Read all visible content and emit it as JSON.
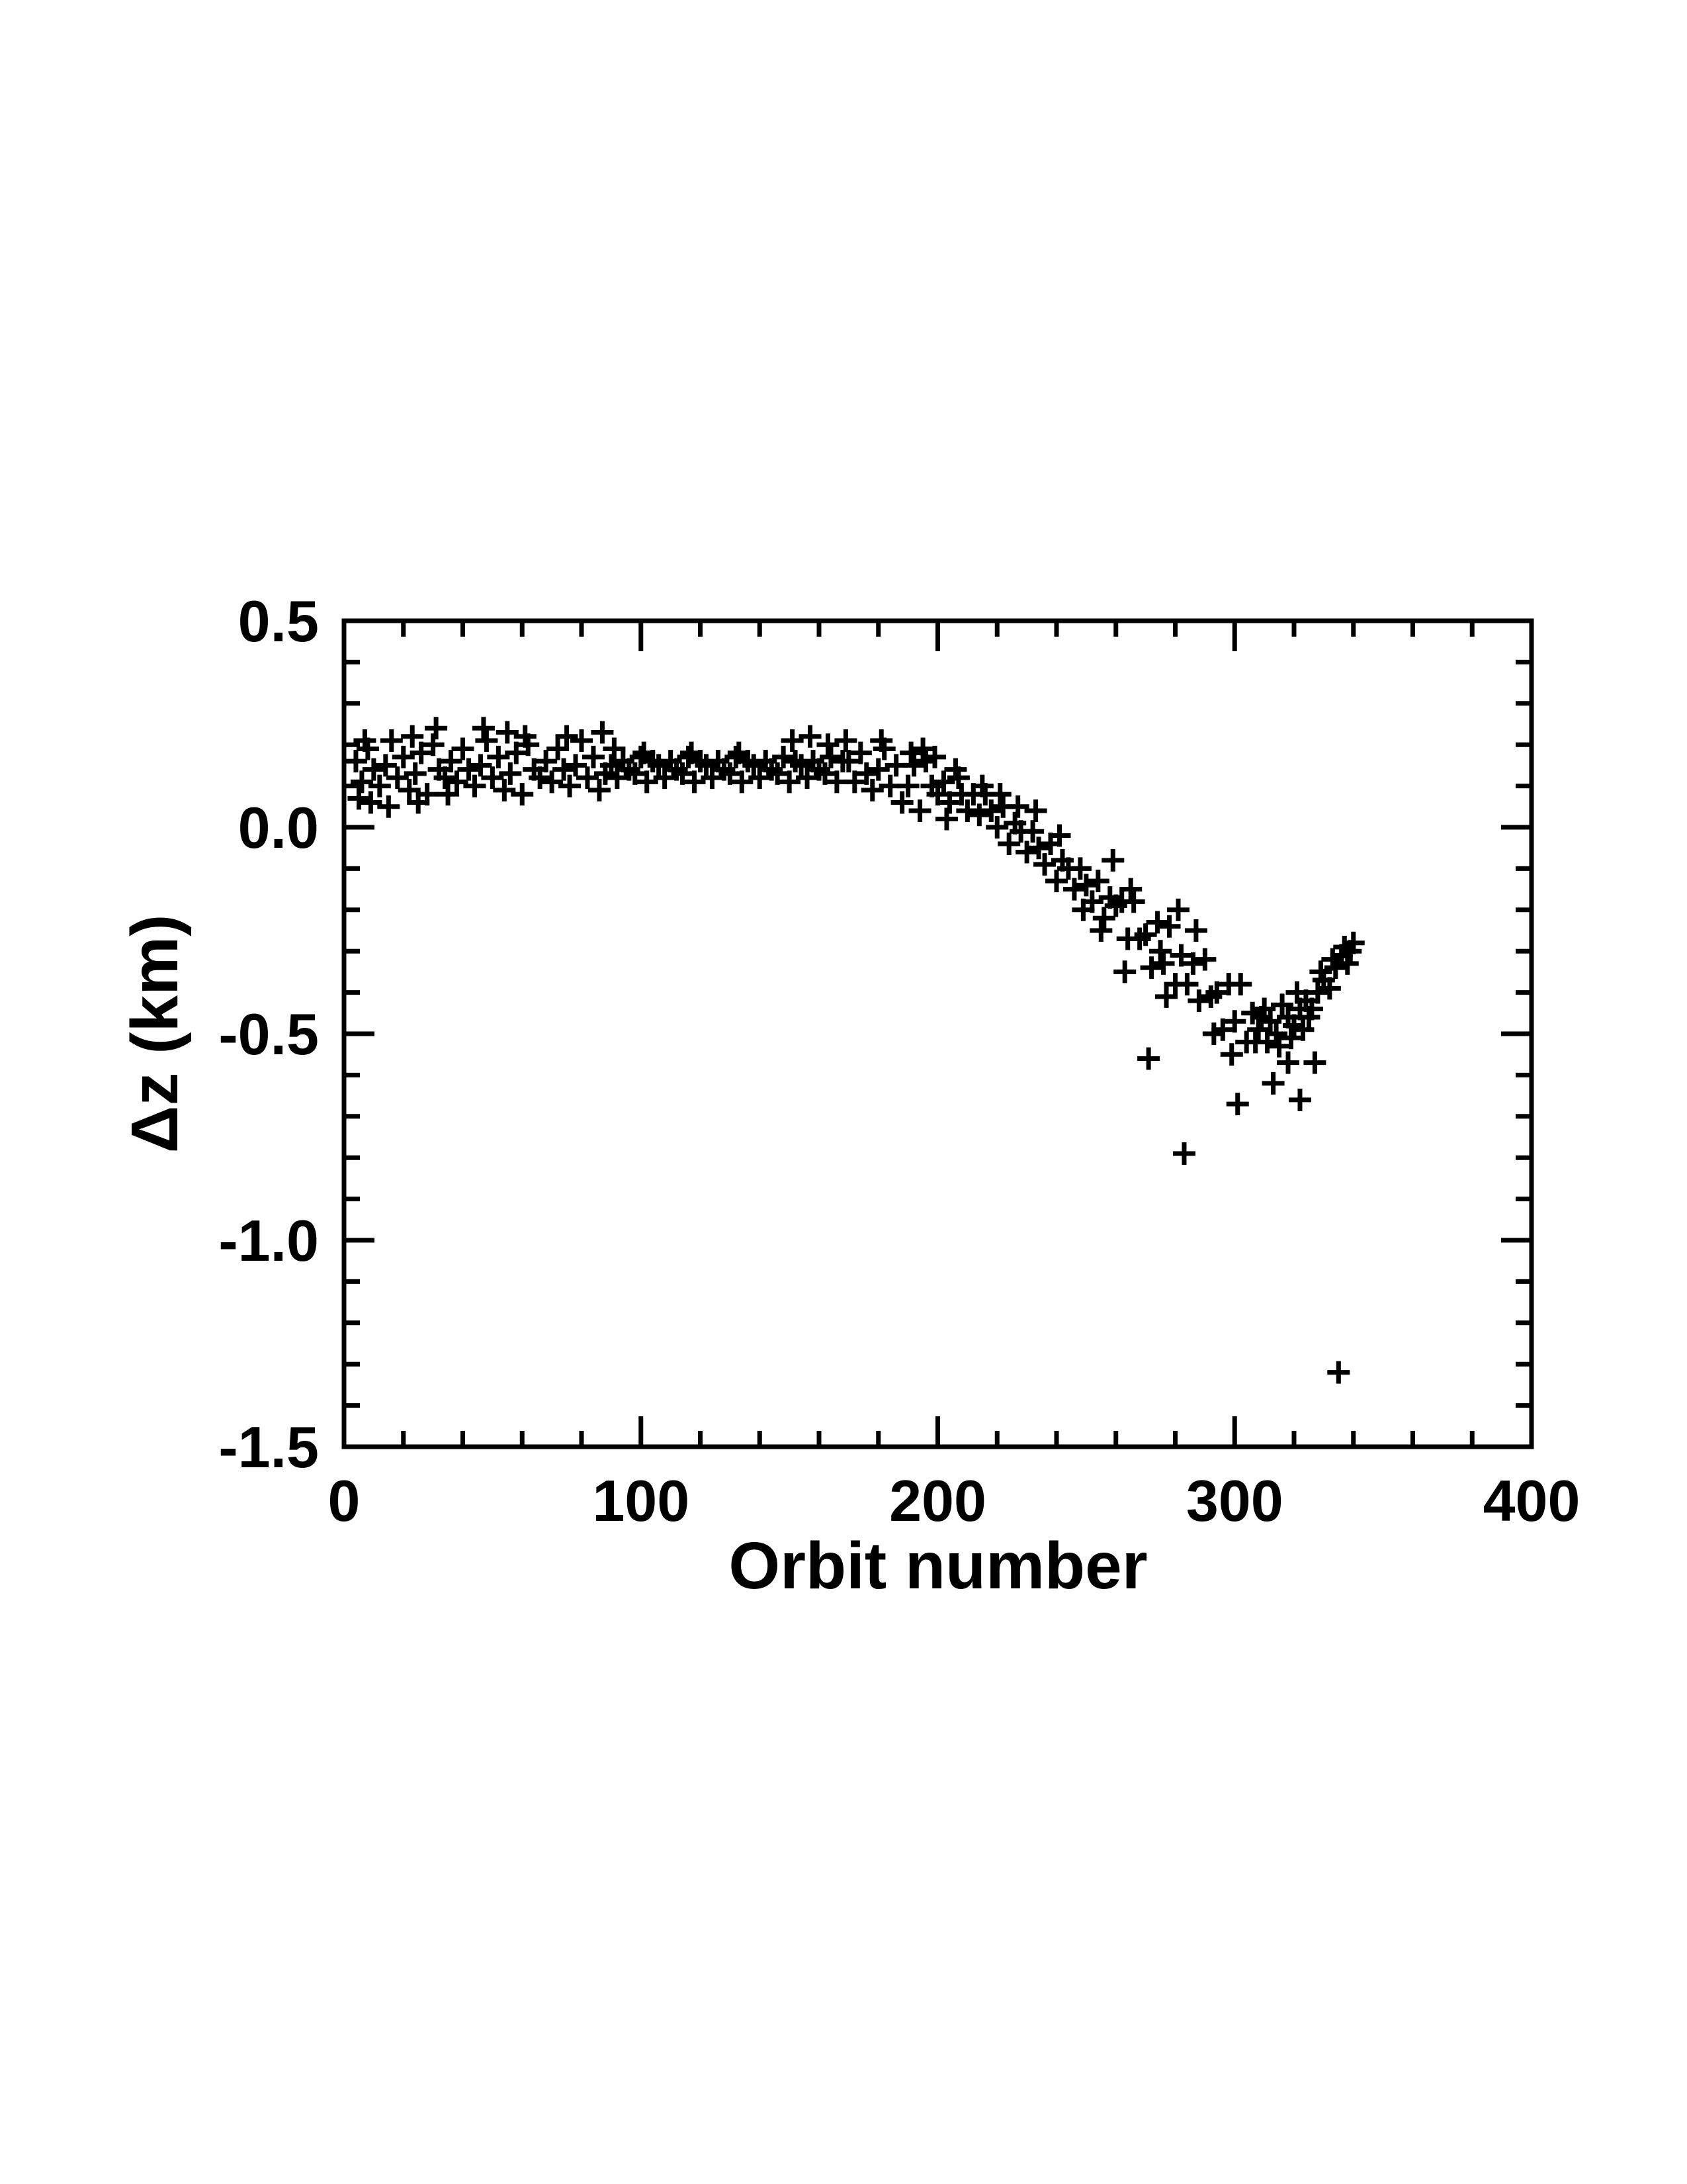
{
  "figure": {
    "background": "#ffffff",
    "ink": "#000000"
  },
  "chart_data": {
    "type": "scatter",
    "title": "",
    "xlabel": "Orbit number",
    "ylabel": "Δz (km)",
    "marker": "plus",
    "grid": false,
    "legend": "none",
    "xlim": [
      0,
      400
    ],
    "ylim": [
      -1.5,
      0.5
    ],
    "x_major_ticks": [
      0,
      100,
      200,
      300,
      400
    ],
    "x_tick_labels": [
      "0",
      "100",
      "200",
      "300",
      "400"
    ],
    "x_minor_step": 20,
    "y_major_ticks": [
      0.5,
      0.0,
      -0.5,
      -1.0,
      -1.5
    ],
    "y_tick_labels": [
      "0.5",
      "0.0",
      "-0.5",
      "-1.0",
      "-1.5"
    ],
    "y_minor_step": 0.1,
    "points": [
      [
        4,
        0.16
      ],
      [
        6,
        0.11
      ],
      [
        8,
        0.19
      ],
      [
        10,
        0.14
      ],
      [
        12,
        0.1
      ],
      [
        14,
        0.15
      ],
      [
        16,
        0.21
      ],
      [
        18,
        0.12
      ],
      [
        20,
        0.17
      ],
      [
        22,
        0.09
      ],
      [
        24,
        0.13
      ],
      [
        26,
        0.18
      ],
      [
        28,
        0.08
      ],
      [
        30,
        0.2
      ],
      [
        32,
        0.14
      ],
      [
        34,
        0.12
      ],
      [
        36,
        0.16
      ],
      [
        38,
        0.11
      ],
      [
        40,
        0.19
      ],
      [
        42,
        0.14
      ],
      [
        44,
        0.1
      ],
      [
        46,
        0.15
      ],
      [
        48,
        0.21
      ],
      [
        50,
        0.12
      ],
      [
        52,
        0.17
      ],
      [
        54,
        0.09
      ],
      [
        56,
        0.13
      ],
      [
        58,
        0.18
      ],
      [
        60,
        0.08
      ],
      [
        62,
        0.2
      ],
      [
        64,
        0.14
      ],
      [
        66,
        0.12
      ],
      [
        68,
        0.16
      ],
      [
        70,
        0.11
      ],
      [
        72,
        0.19
      ],
      [
        74,
        0.14
      ],
      [
        76,
        0.1
      ],
      [
        78,
        0.15
      ],
      [
        80,
        0.21
      ],
      [
        82,
        0.12
      ],
      [
        84,
        0.17
      ],
      [
        86,
        0.09
      ],
      [
        88,
        0.13
      ],
      [
        5,
        0.07
      ],
      [
        9,
        0.06
      ],
      [
        15,
        0.05
      ],
      [
        25,
        0.06
      ],
      [
        35,
        0.08
      ],
      [
        7,
        0.21
      ],
      [
        23,
        0.22
      ],
      [
        31,
        0.24
      ],
      [
        47,
        0.24
      ],
      [
        55,
        0.23
      ],
      [
        61,
        0.22
      ],
      [
        75,
        0.22
      ],
      [
        87,
        0.23
      ],
      [
        90,
        0.15
      ],
      [
        92,
        0.12
      ],
      [
        94,
        0.16
      ],
      [
        96,
        0.14
      ],
      [
        98,
        0.13
      ],
      [
        100,
        0.17
      ],
      [
        102,
        0.11
      ],
      [
        104,
        0.16
      ],
      [
        106,
        0.15
      ],
      [
        108,
        0.12
      ],
      [
        110,
        0.16
      ],
      [
        112,
        0.14
      ],
      [
        114,
        0.13
      ],
      [
        116,
        0.17
      ],
      [
        118,
        0.11
      ],
      [
        120,
        0.16
      ],
      [
        122,
        0.15
      ],
      [
        124,
        0.12
      ],
      [
        126,
        0.16
      ],
      [
        128,
        0.14
      ],
      [
        130,
        0.13
      ],
      [
        132,
        0.17
      ],
      [
        134,
        0.11
      ],
      [
        136,
        0.16
      ],
      [
        138,
        0.15
      ],
      [
        140,
        0.12
      ],
      [
        142,
        0.16
      ],
      [
        144,
        0.14
      ],
      [
        146,
        0.13
      ],
      [
        148,
        0.17
      ],
      [
        150,
        0.11
      ],
      [
        152,
        0.16
      ],
      [
        154,
        0.15
      ],
      [
        156,
        0.12
      ],
      [
        158,
        0.16
      ],
      [
        160,
        0.14
      ],
      [
        162,
        0.13
      ],
      [
        164,
        0.17
      ],
      [
        166,
        0.11
      ],
      [
        168,
        0.16
      ],
      [
        151,
        0.21
      ],
      [
        157,
        0.22
      ],
      [
        163,
        0.2
      ],
      [
        169,
        0.21
      ],
      [
        91,
        0.19
      ],
      [
        101,
        0.18
      ],
      [
        117,
        0.18
      ],
      [
        133,
        0.18
      ],
      [
        170,
        0.16
      ],
      [
        172,
        0.11
      ],
      [
        174,
        0.18
      ],
      [
        176,
        0.13
      ],
      [
        178,
        0.09
      ],
      [
        180,
        0.14
      ],
      [
        182,
        0.19
      ],
      [
        184,
        0.1
      ],
      [
        186,
        0.15
      ],
      [
        188,
        0.06
      ],
      [
        190,
        0.1
      ],
      [
        192,
        0.15
      ],
      [
        194,
        0.04
      ],
      [
        196,
        0.16
      ],
      [
        198,
        0.1
      ],
      [
        200,
        0.08
      ],
      [
        202,
        0.11
      ],
      [
        204,
        0.06
      ],
      [
        206,
        0.14
      ],
      [
        208,
        0.08
      ],
      [
        210,
        0.04
      ],
      [
        181,
        0.21
      ],
      [
        191,
        0.18
      ],
      [
        199,
        0.17
      ],
      [
        203,
        0.02
      ],
      [
        207,
        0.12
      ],
      [
        195,
        0.19
      ],
      [
        212,
        0.08
      ],
      [
        214,
        0.03
      ],
      [
        216,
        0.08
      ],
      [
        218,
        0.04
      ],
      [
        220,
        0.0
      ],
      [
        222,
        0.05
      ],
      [
        224,
        -0.04
      ],
      [
        226,
        0.01
      ],
      [
        228,
        -0.01
      ],
      [
        230,
        -0.06
      ],
      [
        232,
        -0.01
      ],
      [
        234,
        -0.05
      ],
      [
        236,
        -0.09
      ],
      [
        238,
        -0.04
      ],
      [
        240,
        -0.13
      ],
      [
        242,
        -0.08
      ],
      [
        244,
        -0.1
      ],
      [
        246,
        -0.15
      ],
      [
        248,
        -0.1
      ],
      [
        250,
        -0.14
      ],
      [
        252,
        -0.18
      ],
      [
        254,
        -0.13
      ],
      [
        256,
        -0.22
      ],
      [
        258,
        -0.17
      ],
      [
        260,
        -0.19
      ],
      [
        221,
        0.08
      ],
      [
        233,
        0.04
      ],
      [
        241,
        -0.02
      ],
      [
        249,
        -0.2
      ],
      [
        255,
        -0.25
      ],
      [
        259,
        -0.08
      ],
      [
        215,
        0.1
      ],
      [
        227,
        0.05
      ],
      [
        262,
        -0.18
      ],
      [
        264,
        -0.27
      ],
      [
        266,
        -0.18
      ],
      [
        268,
        -0.27
      ],
      [
        270,
        -0.26
      ],
      [
        272,
        -0.34
      ],
      [
        274,
        -0.23
      ],
      [
        276,
        -0.33
      ],
      [
        278,
        -0.24
      ],
      [
        280,
        -0.38
      ],
      [
        282,
        -0.31
      ],
      [
        284,
        -0.38
      ],
      [
        286,
        -0.33
      ],
      [
        288,
        -0.42
      ],
      [
        290,
        -0.32
      ],
      [
        292,
        -0.41
      ],
      [
        294,
        -0.4
      ],
      [
        296,
        -0.49
      ],
      [
        298,
        -0.38
      ],
      [
        300,
        -0.47
      ],
      [
        302,
        -0.38
      ],
      [
        304,
        -0.52
      ],
      [
        271,
        -0.56
      ],
      [
        265,
        -0.15
      ],
      [
        277,
        -0.41
      ],
      [
        283,
        -0.79
      ],
      [
        287,
        -0.25
      ],
      [
        293,
        -0.5
      ],
      [
        299,
        -0.55
      ],
      [
        263,
        -0.35
      ],
      [
        275,
        -0.3
      ],
      [
        281,
        -0.2
      ],
      [
        306,
        -0.45
      ],
      [
        308,
        -0.49
      ],
      [
        310,
        -0.44
      ],
      [
        312,
        -0.47
      ],
      [
        314,
        -0.5
      ],
      [
        316,
        -0.43
      ],
      [
        318,
        -0.46
      ],
      [
        320,
        -0.48
      ],
      [
        322,
        -0.44
      ],
      [
        324,
        -0.42
      ],
      [
        326,
        -0.44
      ],
      [
        328,
        -0.4
      ],
      [
        330,
        -0.37
      ],
      [
        332,
        -0.39
      ],
      [
        334,
        -0.34
      ],
      [
        336,
        -0.31
      ],
      [
        338,
        -0.33
      ],
      [
        340,
        -0.28
      ],
      [
        301,
        -0.67
      ],
      [
        313,
        -0.62
      ],
      [
        318,
        -0.57
      ],
      [
        322,
        -0.66
      ],
      [
        327,
        -0.57
      ],
      [
        335,
        -1.32
      ],
      [
        311,
        -0.52
      ],
      [
        315,
        -0.53
      ],
      [
        319,
        -0.51
      ],
      [
        323,
        -0.49
      ],
      [
        307,
        -0.52
      ],
      [
        309,
        -0.46
      ],
      [
        329,
        -0.35
      ],
      [
        333,
        -0.32
      ],
      [
        337,
        -0.29
      ],
      [
        325,
        -0.46
      ],
      [
        321,
        -0.4
      ],
      [
        339,
        -0.3
      ]
    ]
  }
}
